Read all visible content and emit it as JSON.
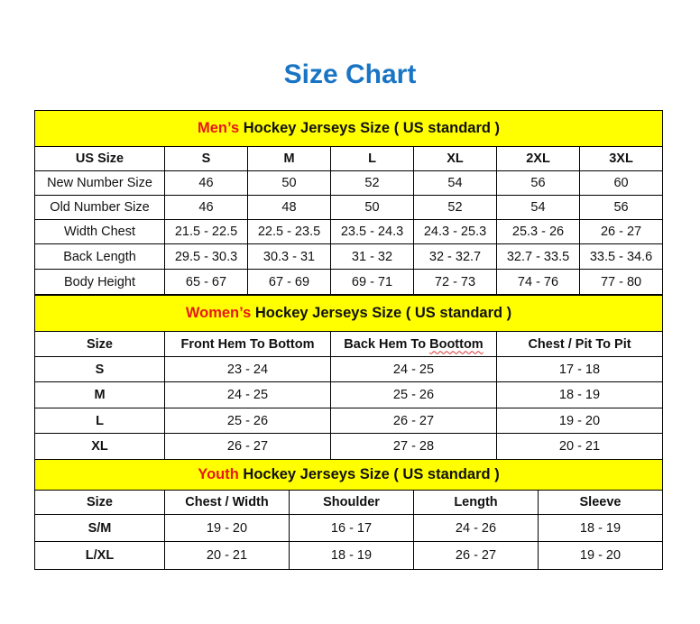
{
  "title": "Size Chart",
  "colors": {
    "title": "#1a74c4",
    "header_bg": "#ffff00",
    "accent_red": "#e8171a"
  },
  "men": {
    "header_prefix": "Men’s",
    "header_rest": " Hockey Jerseys Size ( US standard )",
    "columns": [
      "US Size",
      "S",
      "M",
      "L",
      "XL",
      "2XL",
      "3XL"
    ],
    "rows": [
      [
        "New Number Size",
        "46",
        "50",
        "52",
        "54",
        "56",
        "60"
      ],
      [
        "Old Number Size",
        "46",
        "48",
        "50",
        "52",
        "54",
        "56"
      ],
      [
        "Width Chest",
        "21.5 - 22.5",
        "22.5 - 23.5",
        "23.5 - 24.3",
        "24.3 - 25.3",
        "25.3 - 26",
        "26 - 27"
      ],
      [
        "Back Length",
        "29.5 - 30.3",
        "30.3 - 31",
        "31 - 32",
        "32 - 32.7",
        "32.7 - 33.5",
        "33.5 - 34.6"
      ],
      [
        "Body Height",
        "65 - 67",
        "67 - 69",
        "69 - 71",
        "72 - 73",
        "74 - 76",
        "77 - 80"
      ]
    ]
  },
  "women": {
    "header_prefix": "Women’s",
    "header_rest": " Hockey Jerseys Size ( US standard )",
    "columns": [
      "Size",
      "Front Hem To Bottom",
      "Back Hem To Boottom",
      "Chest / Pit To Pit"
    ],
    "rows": [
      [
        "S",
        "23 - 24",
        "24 - 25",
        "17 - 18"
      ],
      [
        "M",
        "24 - 25",
        "25 - 26",
        "18 - 19"
      ],
      [
        "L",
        "25 - 26",
        "26 - 27",
        "19 - 20"
      ],
      [
        "XL",
        "26 - 27",
        "27 - 28",
        "20 - 21"
      ]
    ]
  },
  "youth": {
    "header_prefix": "Youth",
    "header_rest": " Hockey Jerseys Size ( US standard )",
    "columns": [
      "Size",
      "Chest / Width",
      "Shoulder",
      "Length",
      "Sleeve"
    ],
    "rows": [
      [
        "S/M",
        "19 - 20",
        "16 - 17",
        "24 - 26",
        "18 - 19"
      ],
      [
        "L/XL",
        "20 - 21",
        "18 - 19",
        "26 - 27",
        "19 - 20"
      ]
    ]
  }
}
